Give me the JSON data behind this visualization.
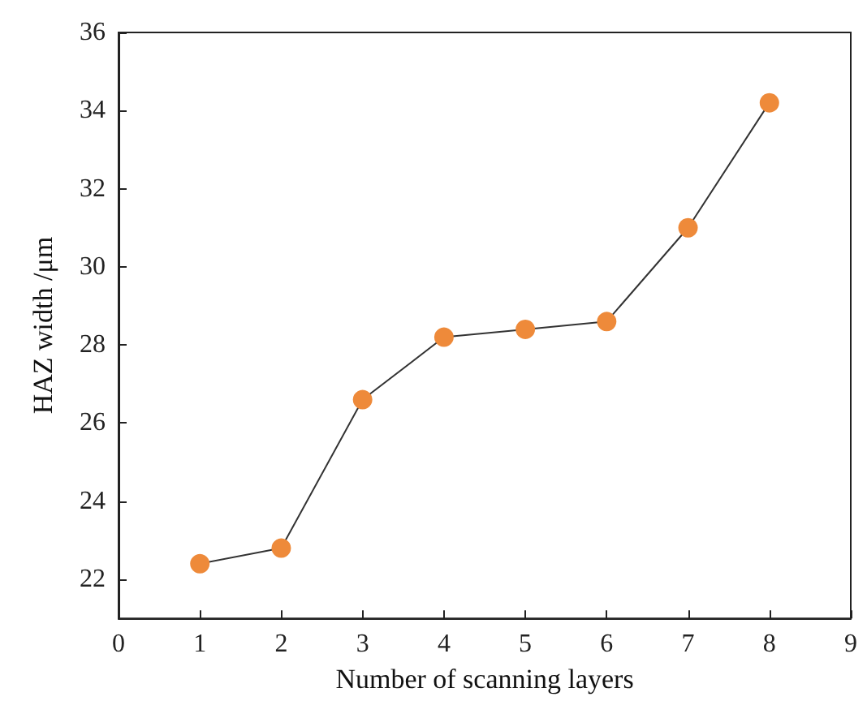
{
  "chart_data": {
    "type": "line",
    "xlabel": "Number of scanning layers",
    "ylabel": "HAZ width /μm",
    "x": [
      1,
      2,
      3,
      4,
      5,
      6,
      7,
      8
    ],
    "series": [
      {
        "color": "#ee8a3a",
        "values": [
          22.4,
          22.8,
          26.6,
          28.2,
          28.4,
          28.6,
          31.0,
          34.2
        ]
      }
    ],
    "xlim": [
      0,
      9
    ],
    "xticks": [
      0,
      1,
      2,
      3,
      4,
      5,
      6,
      7,
      8,
      9
    ],
    "ylim": [
      21,
      36
    ],
    "yticks": [
      22,
      24,
      26,
      28,
      30,
      32,
      34,
      36
    ],
    "marker": "circle",
    "line_style": "solid"
  }
}
